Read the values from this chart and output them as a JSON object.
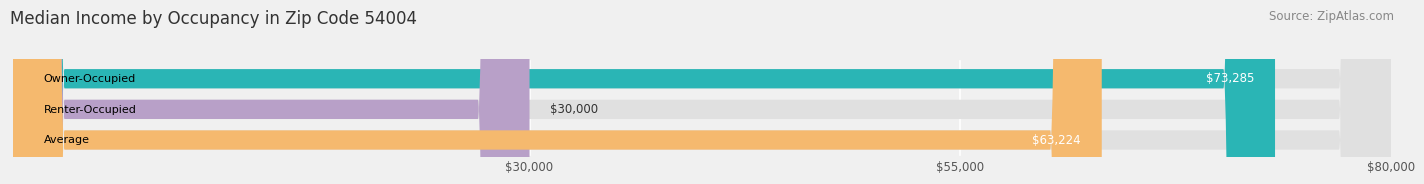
{
  "title": "Median Income by Occupancy in Zip Code 54004",
  "source": "Source: ZipAtlas.com",
  "categories": [
    "Owner-Occupied",
    "Renter-Occupied",
    "Average"
  ],
  "values": [
    73285,
    30000,
    63224
  ],
  "labels": [
    "$73,285",
    "$30,000",
    "$63,224"
  ],
  "bar_colors": [
    "#2ab5b5",
    "#b8a0c8",
    "#f5b96e"
  ],
  "label_colors": [
    "white",
    "black",
    "white"
  ],
  "background_color": "#f0f0f0",
  "bar_bg_color": "#e0e0e0",
  "xlim": [
    0,
    80000
  ],
  "xticks": [
    30000,
    55000,
    80000
  ],
  "xtick_labels": [
    "$30,000",
    "$55,000",
    "$80,000"
  ],
  "title_fontsize": 12,
  "source_fontsize": 8.5,
  "bar_label_fontsize": 8.5,
  "category_fontsize": 8.0
}
